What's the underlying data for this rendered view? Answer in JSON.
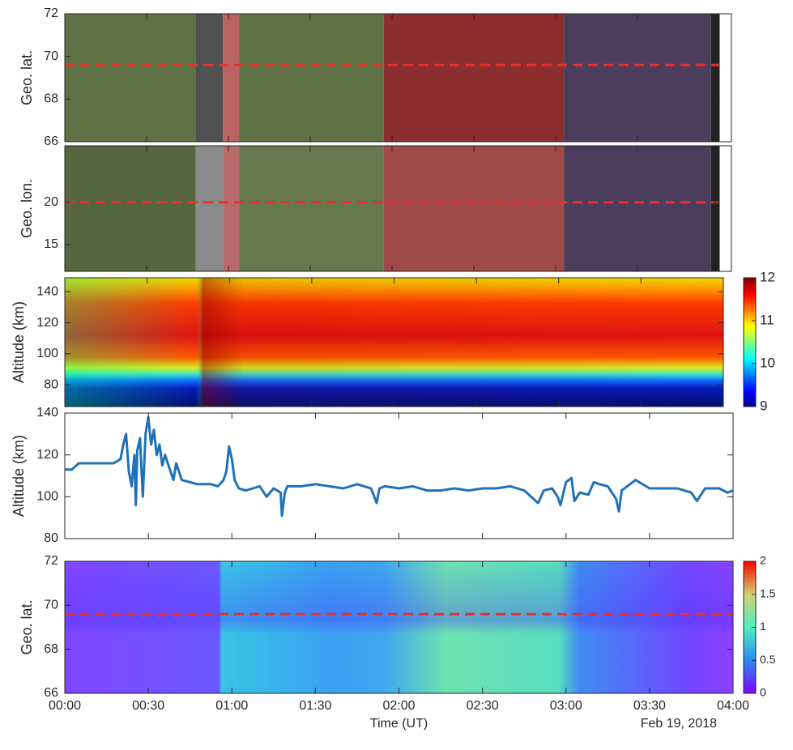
{
  "chart_data": [
    {
      "type": "image",
      "ylabel": "Geo. lat.",
      "ylim": [
        66,
        72
      ],
      "yticks": [
        66,
        68,
        70,
        72
      ],
      "xlim": [
        0,
        240
      ],
      "xticks": [
        0,
        30,
        60,
        90,
        120,
        150,
        180,
        210,
        240
      ],
      "reference_line": {
        "value": 69.6,
        "color": "#e8312a"
      },
      "shaded_intervals": [
        {
          "start": 0,
          "end": 48,
          "color": "#5f7244"
        },
        {
          "start": 48,
          "end": 58,
          "color": "#505050"
        },
        {
          "start": 58,
          "end": 64,
          "color": "#b86262"
        },
        {
          "start": 64,
          "end": 117,
          "color": "#5f7244"
        },
        {
          "start": 117,
          "end": 183,
          "color": "#8c2e2e"
        },
        {
          "start": 183,
          "end": 237,
          "color": "#4d3d5c"
        }
      ]
    },
    {
      "type": "image",
      "ylabel": "Geo. lon.",
      "ylim": [
        11.8,
        26.7
      ],
      "yticks": [
        15,
        20
      ],
      "xlim": [
        0,
        240
      ],
      "xticks": [
        0,
        30,
        60,
        90,
        120,
        150,
        180,
        210,
        240
      ],
      "reference_line": {
        "value": 20,
        "color": "#e8312a"
      },
      "shaded_intervals": [
        {
          "start": 0,
          "end": 48,
          "color": "#56663e"
        },
        {
          "start": 48,
          "end": 58,
          "color": "#8a8a8a"
        },
        {
          "start": 58,
          "end": 64,
          "color": "#b86a6a"
        },
        {
          "start": 64,
          "end": 117,
          "color": "#66784c"
        },
        {
          "start": 117,
          "end": 183,
          "color": "#a04a4a"
        },
        {
          "start": 183,
          "end": 237,
          "color": "#4d3d5c"
        }
      ]
    },
    {
      "type": "heatmap",
      "ylabel": "Altitude (km)",
      "ylim": [
        66,
        149
      ],
      "yticks": [
        80,
        100,
        120,
        140
      ],
      "xlim": [
        0,
        240
      ],
      "xticks": [
        0,
        30,
        60,
        90,
        120,
        150,
        180,
        210,
        240
      ],
      "colorbar": {
        "clim": [
          9,
          12
        ],
        "ticks": [
          9,
          10,
          11,
          12
        ]
      }
    },
    {
      "type": "line",
      "ylabel": "Altitude (km)",
      "ylim": [
        80,
        140
      ],
      "yticks": [
        80,
        100,
        120,
        140
      ],
      "xlim": [
        0,
        240
      ],
      "xticks": [
        0,
        30,
        60,
        90,
        120,
        150,
        180,
        210,
        240
      ],
      "color": "#1f72b8",
      "x": [
        0,
        2.5,
        5,
        7.5,
        10,
        12.5,
        15,
        17.5,
        20,
        21,
        22,
        23,
        24,
        25,
        25.5,
        26,
        27,
        28,
        29,
        30,
        31,
        32,
        33,
        34,
        35,
        36,
        37.5,
        39,
        40,
        42,
        45,
        47.5,
        50,
        52.5,
        55,
        57,
        58,
        59,
        60,
        61,
        62.5,
        65,
        67.5,
        70,
        72.5,
        75,
        77.5,
        78,
        79,
        80,
        85,
        90,
        95,
        100,
        105,
        110,
        112,
        113,
        115,
        120,
        125,
        130,
        135,
        140,
        145,
        150,
        155,
        160,
        165,
        170,
        172,
        175,
        177,
        178,
        180,
        182,
        183,
        185,
        188,
        190,
        192,
        195,
        198,
        199,
        200,
        205,
        210,
        215,
        220,
        225,
        227,
        230,
        235,
        238,
        240
      ],
      "values": [
        113,
        113,
        116,
        116,
        116,
        116,
        116,
        116,
        118,
        125,
        130,
        112,
        105,
        120,
        96,
        122,
        128,
        100,
        130,
        138,
        125,
        132,
        120,
        125,
        115,
        120,
        114,
        108,
        116,
        108,
        107,
        106,
        106,
        106,
        105,
        108,
        112,
        124,
        118,
        108,
        104,
        103,
        104,
        105,
        100,
        104,
        102,
        91,
        102,
        105,
        105,
        106,
        105,
        104,
        106,
        104,
        97,
        104,
        105,
        104,
        105,
        103,
        103,
        104,
        103,
        104,
        104,
        105,
        103,
        97,
        103,
        104,
        100,
        96,
        107,
        109,
        98,
        102,
        101,
        107,
        106,
        105,
        99,
        93,
        103,
        108,
        104,
        104,
        104,
        102,
        98,
        104,
        104,
        102,
        103
      ]
    },
    {
      "type": "heatmap",
      "ylabel": "Geo. lat.",
      "ylim": [
        66,
        72
      ],
      "yticks": [
        66,
        68,
        70,
        72
      ],
      "xlim": [
        0,
        240
      ],
      "xticks": [
        {
          "value": 0,
          "label": "00:00"
        },
        {
          "value": 30,
          "label": "00:30"
        },
        {
          "value": 60,
          "label": "01:00"
        },
        {
          "value": 90,
          "label": "01:30"
        },
        {
          "value": 120,
          "label": "02:00"
        },
        {
          "value": 150,
          "label": "02:30"
        },
        {
          "value": 180,
          "label": "03:00"
        },
        {
          "value": 210,
          "label": "03:30"
        },
        {
          "value": 240,
          "label": "04:00"
        }
      ],
      "xlabel": "Time (UT)",
      "annotation": "Feb 19, 2018",
      "reference_line": {
        "value": 69.6,
        "color": "#e8312a"
      },
      "colorbar": {
        "clim": [
          0,
          2
        ],
        "ticks": [
          0,
          0.5,
          1,
          1.5,
          2
        ]
      }
    }
  ]
}
